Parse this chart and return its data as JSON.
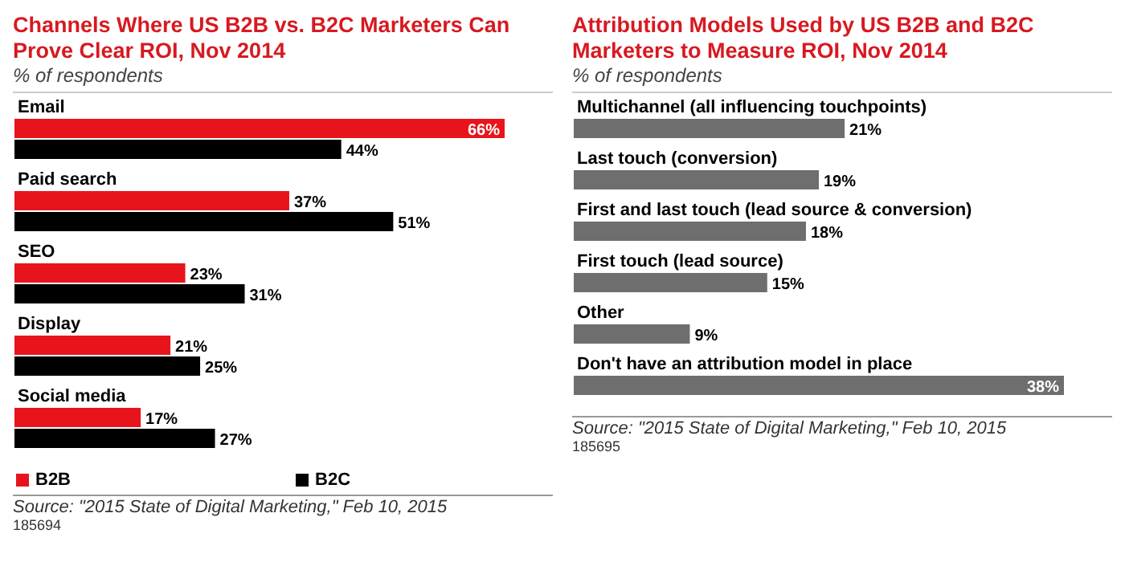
{
  "chart_data": [
    {
      "type": "bar",
      "orientation": "horizontal",
      "title": "Channels Where US B2B vs. B2C Marketers Can Prove Clear ROI, Nov 2014",
      "subtitle": "% of respondents",
      "categories": [
        "Email",
        "Paid search",
        "SEO",
        "Display",
        "Social media"
      ],
      "series": [
        {
          "name": "B2B",
          "color": "#e8141c",
          "values": [
            66,
            37,
            23,
            21,
            17
          ],
          "value_labels": [
            "66%",
            "37%",
            "23%",
            "21%",
            "17%"
          ]
        },
        {
          "name": "B2C",
          "color": "#000000",
          "values": [
            44,
            51,
            31,
            25,
            27
          ],
          "value_labels": [
            "44%",
            "51%",
            "31%",
            "25%",
            "27%"
          ]
        }
      ],
      "legend": "bottom left",
      "annotations": [
        "Source: \"2015 State of Digital Marketing,\" Feb 10, 2015",
        "185694"
      ]
    },
    {
      "type": "bar",
      "orientation": "horizontal",
      "title": "Attribution Models Used by US B2B and B2C Marketers to Measure ROI, Nov 2014",
      "subtitle": "% of respondents",
      "categories": [
        "Multichannel (all influencing touchpoints)",
        "Last touch (conversion)",
        "First and last touch (lead source & conversion)",
        "First touch (lead source)",
        "Other",
        "Don't have an attribution model in place"
      ],
      "series": [
        {
          "color": "#6e6e6e",
          "values": [
            21,
            19,
            18,
            15,
            9,
            38
          ],
          "value_labels": [
            "21%",
            "19%",
            "18%",
            "15%",
            "9%",
            "38%"
          ]
        }
      ],
      "annotations": [
        "Source: \"2015 State of Digital Marketing,\" Feb 10, 2015",
        "185695"
      ]
    }
  ]
}
